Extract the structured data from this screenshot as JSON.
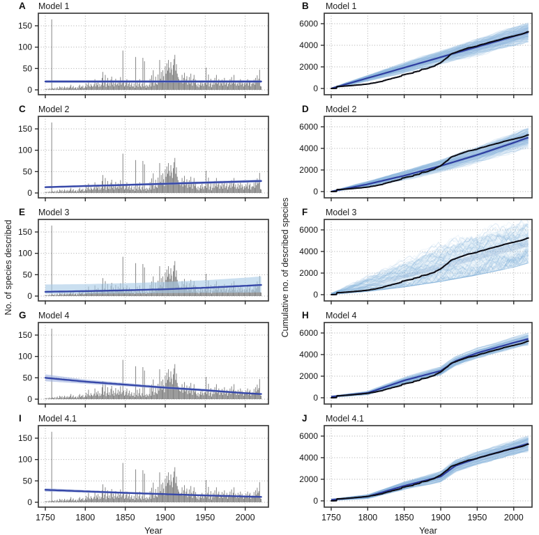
{
  "figure": {
    "xlabel": "Year",
    "left_ylabel": "No. of species described",
    "right_ylabel": "Cumulative no. of described species",
    "x_ticks": [
      1750,
      1800,
      1850,
      1900,
      1950,
      2000
    ],
    "left_y_ticks": [
      0,
      50,
      100,
      150
    ],
    "right_y_ticks": [
      0,
      2000,
      4000,
      6000
    ],
    "left_ylim": [
      0,
      165
    ],
    "right_ylim": [
      0,
      6600
    ],
    "xlim": [
      1750,
      2020
    ],
    "grid": "dotted",
    "colors": {
      "bar": "#7f7f7f",
      "fit_line": "#3647a8",
      "fit_band": "#9fb2de",
      "fit_band_wide": "#a9cbe7",
      "sim_line": "#86b3da",
      "sim_band": "#9ec4e4",
      "sim_median": "#2e3da0",
      "empirical_line": "#0d0d15",
      "frame": "#3b3b3b",
      "grid": "#a8a8a8"
    }
  },
  "chart_data": {
    "type": "bar",
    "note_types": "left panels: bar (species described per year) + model fit line with CI band; right panels: line (empirical cumulative, black) + simulated cumulative trajectories (blue envelope) with median",
    "year_start": 1750,
    "year_end": 2020,
    "species_per_year": [
      2,
      1,
      3,
      0,
      2,
      4,
      1,
      3,
      165,
      4,
      3,
      2,
      5,
      1,
      4,
      6,
      2,
      3,
      8,
      6,
      4,
      7,
      2,
      5,
      8,
      3,
      6,
      4,
      7,
      4,
      5,
      8,
      12,
      4,
      6,
      9,
      3,
      5,
      6,
      2,
      6,
      4,
      9,
      12,
      5,
      8,
      7,
      10,
      4,
      5,
      8,
      15,
      6,
      12,
      22,
      9,
      7,
      14,
      10,
      7,
      9,
      13,
      25,
      8,
      16,
      11,
      19,
      7,
      14,
      8,
      12,
      28,
      42,
      10,
      18,
      35,
      7,
      14,
      28,
      10,
      16,
      9,
      24,
      31,
      12,
      20,
      8,
      15,
      26,
      11,
      14,
      22,
      10,
      18,
      30,
      12,
      16,
      92,
      20,
      8,
      11,
      18,
      25,
      9,
      14,
      20,
      7,
      12,
      16,
      8,
      8,
      15,
      5,
      77,
      10,
      22,
      7,
      14,
      25,
      9,
      6,
      14,
      75,
      8,
      67,
      10,
      5,
      12,
      9,
      7,
      12,
      26,
      8,
      34,
      18,
      46,
      10,
      16,
      31,
      14,
      12,
      36,
      20,
      70,
      26,
      42,
      22,
      46,
      32,
      16,
      55,
      38,
      62,
      45,
      70,
      52,
      40,
      65,
      48,
      35,
      58,
      72,
      82,
      45,
      60,
      38,
      30,
      25,
      20,
      18,
      22,
      35,
      15,
      28,
      40,
      18,
      25,
      32,
      12,
      20,
      30,
      14,
      38,
      22,
      10,
      26,
      35,
      16,
      24,
      12,
      8,
      15,
      6,
      12,
      18,
      10,
      22,
      14,
      9,
      16,
      16,
      52,
      12,
      22,
      36,
      8,
      15,
      26,
      6,
      12,
      22,
      12,
      28,
      16,
      35,
      14,
      20,
      25,
      10,
      18,
      15,
      24,
      10,
      20,
      28,
      12,
      16,
      22,
      8,
      14,
      18,
      25,
      12,
      30,
      15,
      22,
      35,
      14,
      20,
      10,
      14,
      22,
      10,
      18,
      25,
      12,
      20,
      15,
      8,
      16,
      12,
      20,
      15,
      25,
      10,
      18,
      22,
      8,
      14,
      16,
      15,
      24,
      12,
      28,
      18,
      34,
      22,
      26,
      47,
      9,
      8
    ],
    "cumulative_total": 5245,
    "panels": [
      {
        "letter": "A",
        "title": "Model 1",
        "side": "left",
        "row": 0,
        "fit": {
          "years": [
            1750,
            2020
          ],
          "mid": [
            19.5,
            19.5
          ],
          "lo": [
            16.5,
            16.5
          ],
          "hi": [
            22.5,
            22.5
          ],
          "style": "narrow"
        }
      },
      {
        "letter": "B",
        "title": "Model 1",
        "side": "right",
        "row": 0,
        "sim": {
          "years": [
            1750,
            1800,
            1850,
            1900,
            1950,
            2000,
            2020
          ],
          "median": [
            0,
            965,
            1930,
            2895,
            3860,
            4825,
            5210
          ],
          "hw": [
            40,
            280,
            470,
            620,
            750,
            860,
            900
          ],
          "style": "normal"
        }
      },
      {
        "letter": "C",
        "title": "Model 2",
        "side": "left",
        "row": 1,
        "fit": {
          "years": [
            1750,
            2020
          ],
          "mid": [
            13.5,
            28
          ],
          "lo": [
            11.5,
            24.5
          ],
          "hi": [
            15.5,
            31.5
          ],
          "style": "narrow"
        }
      },
      {
        "letter": "D",
        "title": "Model 2",
        "side": "right",
        "row": 1,
        "sim": {
          "years": [
            1750,
            1800,
            1850,
            1900,
            1950,
            2000,
            2020
          ],
          "median": [
            0,
            681,
            1474,
            2379,
            3396,
            4525,
            5008
          ],
          "hw": [
            40,
            250,
            420,
            560,
            680,
            800,
            850
          ],
          "style": "normal"
        }
      },
      {
        "letter": "E",
        "title": "Model 3",
        "side": "left",
        "row": 2,
        "fit": {
          "years": [
            1750,
            1800,
            1850,
            1900,
            1950,
            2000,
            2020
          ],
          "mid": [
            10,
            11.5,
            13.5,
            16,
            19.5,
            24,
            26
          ],
          "lo": [
            5,
            5.5,
            6,
            7,
            7.5,
            8,
            8.5
          ],
          "hi": [
            27,
            28,
            30,
            33,
            37,
            43,
            46
          ],
          "style": "wide"
        }
      },
      {
        "letter": "F",
        "title": "Model 3",
        "side": "right",
        "row": 2,
        "sim": {
          "years": [
            1750,
            1800,
            1850,
            1900,
            1950,
            2000,
            2020
          ],
          "median": [
            60,
            800,
            1700,
            2600,
            3500,
            4400,
            4750
          ],
          "lo": [
            20,
            300,
            700,
            1200,
            1800,
            2500,
            2900
          ],
          "hi": [
            120,
            1500,
            2900,
            4200,
            5300,
            6300,
            6600
          ],
          "style": "diffuse"
        }
      },
      {
        "letter": "G",
        "title": "Model 4",
        "side": "left",
        "row": 3,
        "fit": {
          "years": [
            1750,
            1800,
            1850,
            1900,
            1950,
            2000,
            2020
          ],
          "mid": [
            50,
            41,
            34,
            27,
            21,
            14,
            12
          ],
          "lo": [
            42,
            36,
            30,
            24,
            18,
            12,
            10
          ],
          "hi": [
            58,
            46,
            38,
            30,
            24,
            16,
            14
          ],
          "style": "narrow"
        }
      },
      {
        "letter": "H",
        "title": "Model 4",
        "side": "right",
        "row": 3,
        "sim": {
          "years": [
            1750,
            1800,
            1850,
            1900,
            1920,
            1950,
            2000,
            2020
          ],
          "median": [
            100,
            450,
            1600,
            2500,
            3400,
            4150,
            5100,
            5450
          ],
          "hw": [
            60,
            150,
            280,
            380,
            420,
            450,
            480,
            520
          ],
          "style": "normal"
        }
      },
      {
        "letter": "I",
        "title": "Model 4.1",
        "side": "left",
        "row": 4,
        "fit": {
          "years": [
            1750,
            1800,
            1850,
            1900,
            1950,
            2000,
            2020
          ],
          "mid": [
            29,
            25.5,
            22,
            19,
            16,
            13.5,
            12.5
          ],
          "lo": [
            25,
            22.5,
            19.5,
            17,
            14,
            11.5,
            10.5
          ],
          "hi": [
            33,
            28.5,
            24.5,
            21,
            18,
            15.5,
            14.5
          ],
          "style": "narrow"
        }
      },
      {
        "letter": "J",
        "title": "Model 4.1",
        "side": "right",
        "row": 4,
        "sim": {
          "years": [
            1750,
            1800,
            1850,
            1900,
            1920,
            1950,
            2000,
            2020
          ],
          "median": [
            100,
            400,
            1400,
            2250,
            3250,
            3950,
            4900,
            5300
          ],
          "hw": [
            60,
            180,
            350,
            480,
            520,
            560,
            620,
            700
          ],
          "style": "normal"
        }
      }
    ]
  }
}
